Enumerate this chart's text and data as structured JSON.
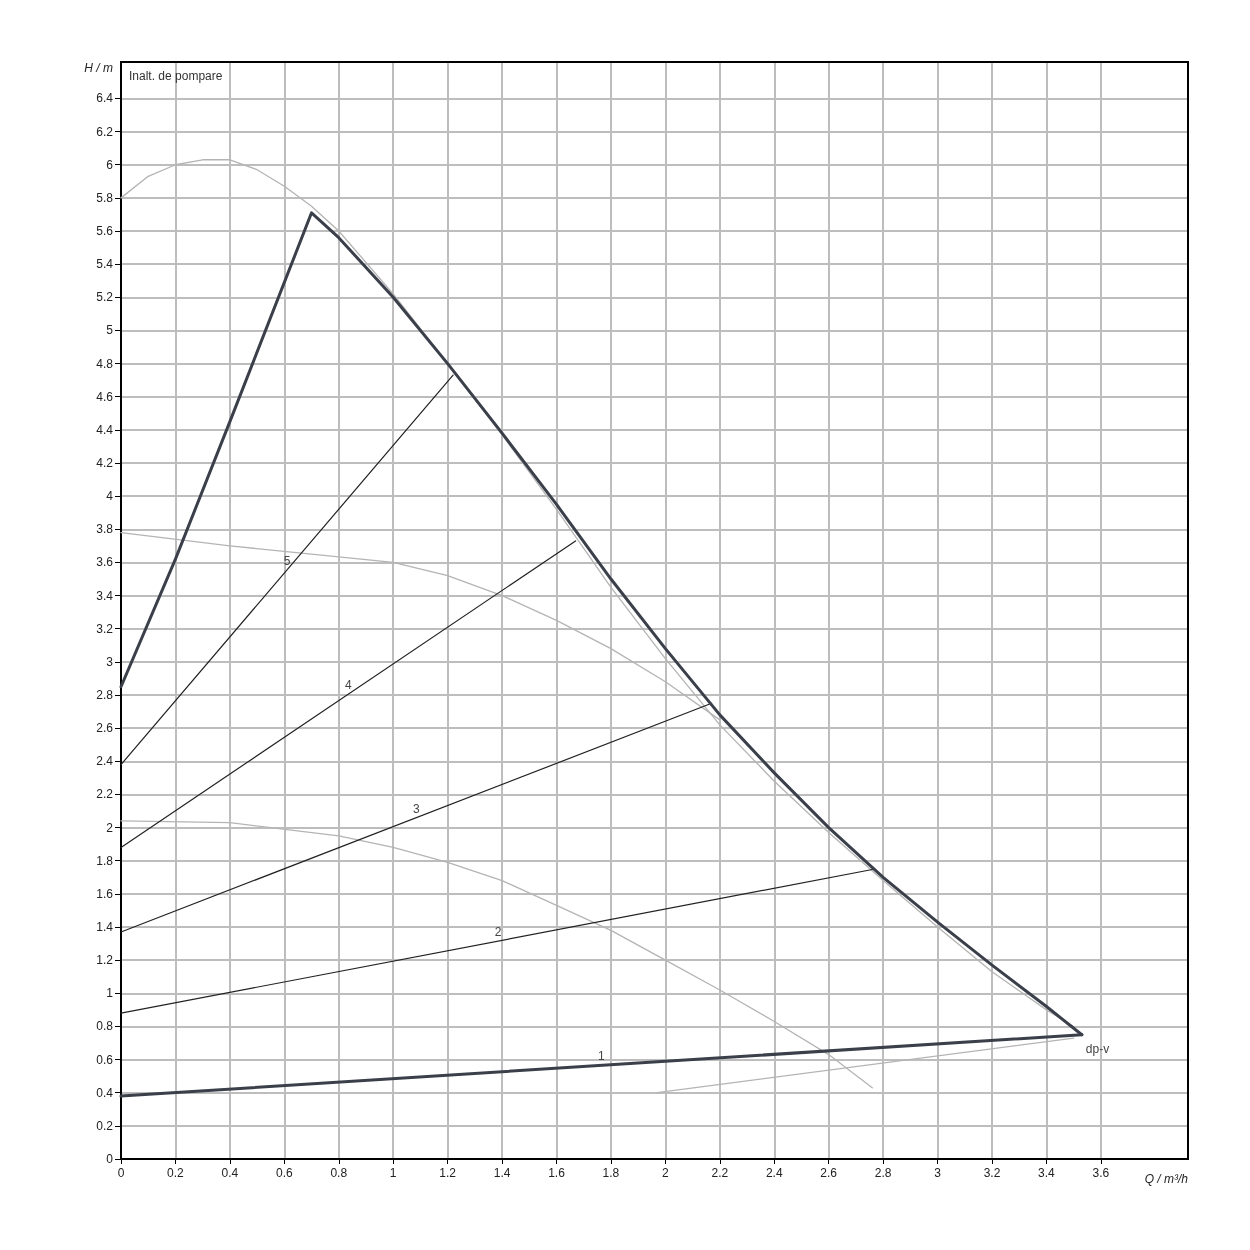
{
  "chart_data": {
    "type": "line",
    "xlabel": "Q / m³/h",
    "ylabel": "H / m",
    "annotations": [
      "Inalt. de pompare"
    ],
    "xlim": [
      0,
      3.92
    ],
    "xticks": [
      0,
      0.2,
      0.4,
      0.6,
      0.8,
      1,
      1.2,
      1.4,
      1.6,
      1.8,
      2,
      2.2,
      2.4,
      2.6,
      2.8,
      3,
      3.2,
      3.4,
      3.6
    ],
    "ylim": [
      0,
      6.62
    ],
    "yticks": [
      0,
      0.2,
      0.4,
      0.6,
      0.8,
      1,
      1.2,
      1.4,
      1.6,
      1.8,
      2,
      2.2,
      2.4,
      2.6,
      2.8,
      3,
      3.2,
      3.4,
      3.6,
      3.8,
      4,
      4.2,
      4.4,
      4.6,
      4.8,
      5,
      5.2,
      5.4,
      5.6,
      5.8,
      6,
      6.2,
      6.4
    ],
    "grid": true,
    "marker": "none",
    "line_style": "solid",
    "series": [
      {
        "color": "#b4b4b4",
        "x": [
          0,
          0.1,
          0.2,
          0.3,
          0.4,
          0.5,
          0.6,
          0.7,
          0.8,
          1,
          1.2,
          1.4,
          1.6,
          1.8,
          2,
          2.2,
          2.4,
          2.6,
          2.8,
          3,
          3.2,
          3.4,
          3.5
        ],
        "values": [
          5.8,
          5.93,
          6,
          6.03,
          6.03,
          5.97,
          5.87,
          5.75,
          5.6,
          5.22,
          4.8,
          4.37,
          3.92,
          3.45,
          3.02,
          2.62,
          2.28,
          1.97,
          1.68,
          1.4,
          1.13,
          0.9,
          0.8
        ]
      },
      {
        "color": "#b4b4b4",
        "x": [
          0,
          0.4,
          0.7,
          1,
          1.2,
          1.4,
          1.6,
          1.8,
          2,
          2.2
        ],
        "values": [
          3.78,
          3.7,
          3.65,
          3.6,
          3.52,
          3.4,
          3.25,
          3.08,
          2.88,
          2.65
        ]
      },
      {
        "color": "#b4b4b4",
        "x": [
          0,
          0.4,
          0.8,
          1,
          1.2,
          1.4,
          1.6,
          1.8,
          2,
          2.2,
          2.4,
          2.6,
          2.76
        ],
        "values": [
          2.04,
          2.03,
          1.95,
          1.88,
          1.79,
          1.68,
          1.53,
          1.38,
          1.2,
          1.02,
          0.83,
          0.63,
          0.43
        ]
      },
      {
        "color": "#b4b4b4",
        "x": [
          1.97,
          3.5
        ],
        "values": [
          0.4,
          0.73
        ]
      },
      {
        "name": "2",
        "color": "#222222",
        "x": [
          0,
          2.77
        ],
        "values": [
          0.88,
          1.75
        ]
      },
      {
        "name": "3",
        "color": "#222222",
        "x": [
          0,
          2.17
        ],
        "values": [
          1.37,
          2.75
        ]
      },
      {
        "name": "4",
        "color": "#222222",
        "x": [
          0,
          1.67
        ],
        "values": [
          1.88,
          3.73
        ]
      },
      {
        "name": "5",
        "color": "#222222",
        "x": [
          0,
          1.22
        ],
        "values": [
          2.38,
          4.73
        ]
      },
      {
        "name": "1",
        "color": "#3a3f4a",
        "x": [
          0,
          3.53
        ],
        "values": [
          0.38,
          0.75
        ]
      },
      {
        "name": "dp-v",
        "color": "#3a3f4a",
        "x": [
          0,
          0.2,
          0.4,
          0.7,
          0.8,
          1,
          1.2,
          1.4,
          1.6,
          1.8,
          2,
          2.2,
          2.4,
          2.6,
          2.8,
          3,
          3.2,
          3.4,
          3.53
        ],
        "values": [
          2.85,
          3.62,
          4.45,
          5.71,
          5.56,
          5.2,
          4.8,
          4.38,
          3.95,
          3.5,
          3.08,
          2.68,
          2.33,
          2,
          1.7,
          1.43,
          1.17,
          0.92,
          0.75
        ]
      }
    ]
  }
}
